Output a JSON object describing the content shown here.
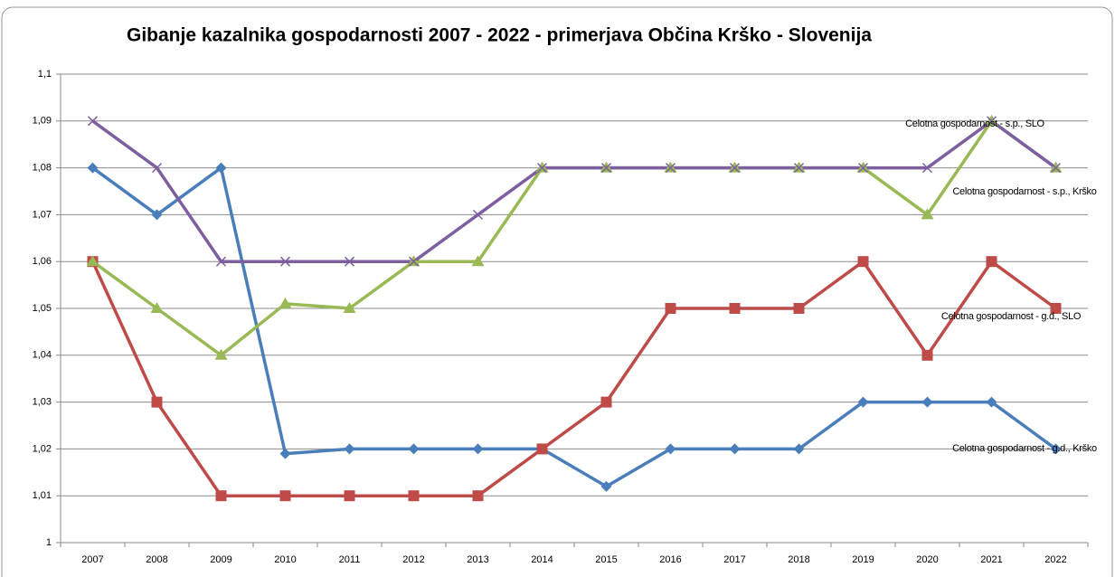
{
  "chart_data": {
    "type": "line",
    "title": "Gibanje kazalnika gospodarnosti 2007 - 2022  - primerjava Občina  Krško - Slovenija",
    "categories": [
      "2007",
      "2008",
      "2009",
      "2010",
      "2011",
      "2012",
      "2013",
      "2014",
      "2015",
      "2016",
      "2017",
      "2018",
      "2019",
      "2020",
      "2021",
      "2022"
    ],
    "series": [
      {
        "name": "Celotna gospodarnost - g.d., Krško",
        "color": "#4a7ebb",
        "marker": "diamond",
        "values": [
          1.08,
          1.07,
          1.08,
          1.019,
          1.02,
          1.02,
          1.02,
          1.02,
          1.012,
          1.02,
          1.02,
          1.02,
          1.03,
          1.03,
          1.03,
          1.02
        ]
      },
      {
        "name": "Celotna gospodarnost - g.d., SLO",
        "color": "#be4b48",
        "marker": "square",
        "values": [
          1.06,
          1.03,
          1.01,
          1.01,
          1.01,
          1.01,
          1.01,
          1.02,
          1.03,
          1.05,
          1.05,
          1.05,
          1.06,
          1.04,
          1.06,
          1.05
        ]
      },
      {
        "name": "Celotna gospodarnost - s.p., Krško",
        "color": "#98b954",
        "marker": "triangle",
        "values": [
          1.06,
          1.05,
          1.04,
          1.051,
          1.05,
          1.06,
          1.06,
          1.08,
          1.08,
          1.08,
          1.08,
          1.08,
          1.08,
          1.07,
          1.09,
          1.08
        ]
      },
      {
        "name": "Celotna gospodarnost - s.p., SLO",
        "color": "#7d5fa0",
        "marker": "x",
        "values": [
          1.09,
          1.08,
          1.06,
          1.06,
          1.06,
          1.06,
          1.07,
          1.08,
          1.08,
          1.08,
          1.08,
          1.08,
          1.08,
          1.08,
          1.09,
          1.08
        ]
      }
    ],
    "ylim": [
      1,
      1.1
    ],
    "yticks": [
      1,
      {
        "value": 1.01,
        "label": "1,01"
      },
      {
        "value": 1.02,
        "label": "1,02"
      },
      {
        "value": 1.03,
        "label": "1,03"
      },
      {
        "value": 1.04,
        "label": "1,04"
      },
      {
        "value": 1.05,
        "label": "1,05"
      },
      {
        "value": 1.06,
        "label": "1,06"
      },
      {
        "value": 1.07,
        "label": "1,07"
      },
      {
        "value": 1.08,
        "label": "1,08"
      },
      {
        "value": 1.09,
        "label": "1,09"
      },
      {
        "value": 1.1,
        "label": "1,1"
      }
    ],
    "grid": true
  }
}
